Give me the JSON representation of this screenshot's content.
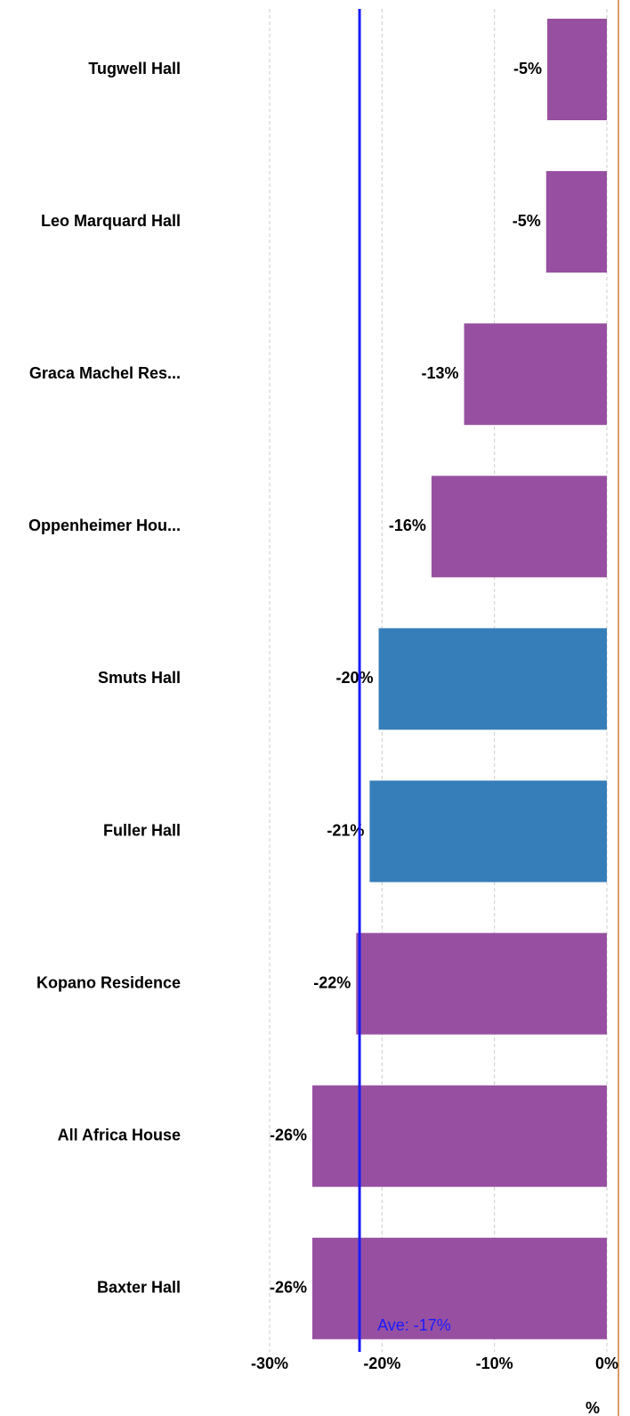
{
  "chart_data": {
    "type": "hbar",
    "categories": [
      "Tugwell Hall",
      "Leo Marquard Hall",
      "Graca Machel Res...",
      "Oppenheimer Hou...",
      "Smuts Hall",
      "Fuller Hall",
      "Kopano Residence",
      "All Africa House",
      "Baxter Hall"
    ],
    "values": [
      -5.3,
      -5.4,
      -12.7,
      -15.6,
      -20.3,
      -21.1,
      -22.3,
      -26.2,
      -26.2
    ],
    "value_labels": [
      "-5%",
      "-5%",
      "-13%",
      "-16%",
      "-20%",
      "-21%",
      "-22%",
      "-26%",
      "-26%"
    ],
    "colors": [
      "#9750a1",
      "#9750a1",
      "#9750a1",
      "#9750a1",
      "#367eb9",
      "#367eb9",
      "#9750a1",
      "#9750a1",
      "#9750a1"
    ],
    "xlim": [
      -30,
      0
    ],
    "xticks": [
      {
        "value": -30,
        "label": "-30%"
      },
      {
        "value": -20,
        "label": "-20%"
      },
      {
        "value": -10,
        "label": "-10%"
      },
      {
        "value": 0,
        "label": "0%"
      }
    ],
    "x_label": "%",
    "grid": true,
    "reference_line": {
      "value": -22,
      "color": "#1a1aff"
    },
    "annotation": "Ave: -17%"
  }
}
